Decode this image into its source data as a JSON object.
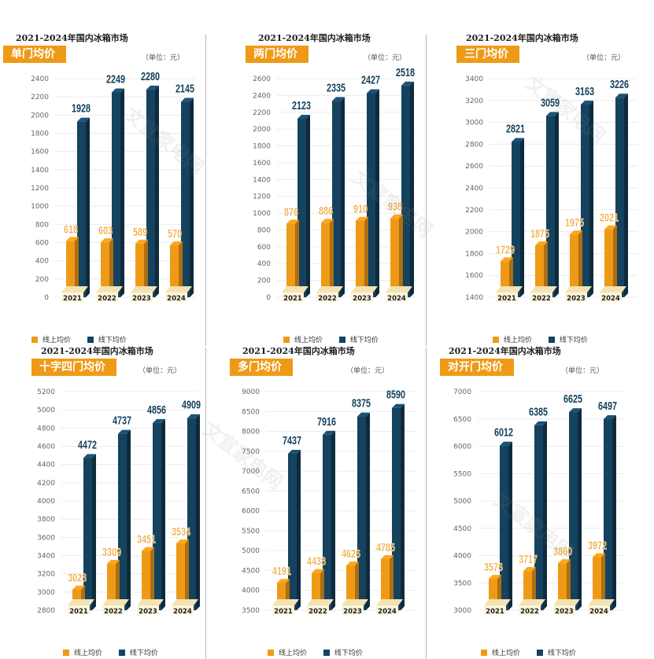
{
  "legend": {
    "online": "线上均价",
    "offline": "线下均价"
  },
  "colors": {
    "online": "#ef9a17",
    "offline": "#15425e",
    "banner": "#ef9a17"
  },
  "watermark": "文宣家电网",
  "chart_data": [
    {
      "type": "bar",
      "title": "2021-2024年国内冰箱市场",
      "subtitle": "单门均价",
      "unit": "（单位：元）",
      "categories": [
        "2021",
        "2022",
        "2023",
        "2024"
      ],
      "ylim": [
        0,
        2400
      ],
      "ytick_step": 200,
      "series": [
        {
          "name": "线上均价",
          "values": [
            618,
            603,
            589,
            570
          ]
        },
        {
          "name": "线下均价",
          "values": [
            1928,
            2249,
            2280,
            2145
          ]
        }
      ]
    },
    {
      "type": "bar",
      "title": "2021-2024年国内冰箱市场",
      "subtitle": "两门均价",
      "unit": "（单位：元）",
      "categories": [
        "2021",
        "2022",
        "2023",
        "2024"
      ],
      "ylim": [
        0,
        2600
      ],
      "ytick_step": 200,
      "series": [
        {
          "name": "线上均价",
          "values": [
            876,
            886,
            910,
            938
          ]
        },
        {
          "name": "线下均价",
          "values": [
            2123,
            2335,
            2427,
            2518
          ]
        }
      ]
    },
    {
      "type": "bar",
      "title": "2021-2024年国内冰箱市场",
      "subtitle": "三门均价",
      "unit": "（单位：元）",
      "categories": [
        "2021",
        "2022",
        "2023",
        "2024"
      ],
      "ylim": [
        1400,
        3400
      ],
      "ytick_step": 200,
      "series": [
        {
          "name": "线上均价",
          "values": [
            1729,
            1875,
            1975,
            2021
          ]
        },
        {
          "name": "线下均价",
          "values": [
            2821,
            3059,
            3163,
            3226
          ]
        }
      ]
    },
    {
      "type": "bar",
      "title": "2021-2024年国内冰箱市场",
      "subtitle": "十字四门均价",
      "unit": "（单位：元）",
      "categories": [
        "2021",
        "2022",
        "2023",
        "2024"
      ],
      "ylim": [
        2800,
        5200
      ],
      "ytick_step": 200,
      "series": [
        {
          "name": "线上均价",
          "values": [
            3028,
            3309,
            3451,
            3534
          ]
        },
        {
          "name": "线下均价",
          "values": [
            4472,
            4737,
            4856,
            4909
          ]
        }
      ]
    },
    {
      "type": "bar",
      "title": "2021-2024年国内冰箱市场",
      "subtitle": "多门均价",
      "unit": "（单位：元）",
      "categories": [
        "2021",
        "2022",
        "2023",
        "2024"
      ],
      "ylim": [
        3500,
        9000
      ],
      "ytick_step": 500,
      "series": [
        {
          "name": "线上均价",
          "values": [
            4191,
            4438,
            4626,
            4785
          ]
        },
        {
          "name": "线下均价",
          "values": [
            7437,
            7916,
            8375,
            8590
          ]
        }
      ]
    },
    {
      "type": "bar",
      "title": "2021-2024年国内冰箱市场",
      "subtitle": "对开门均价",
      "unit": "（单位：元）",
      "categories": [
        "2021",
        "2022",
        "2023",
        "2024"
      ],
      "ylim": [
        3000,
        7000
      ],
      "ytick_step": 500,
      "series": [
        {
          "name": "线上均价",
          "values": [
            3576,
            3717,
            3860,
            3972
          ]
        },
        {
          "name": "线下均价",
          "values": [
            6012,
            6385,
            6625,
            6497
          ]
        }
      ]
    }
  ]
}
